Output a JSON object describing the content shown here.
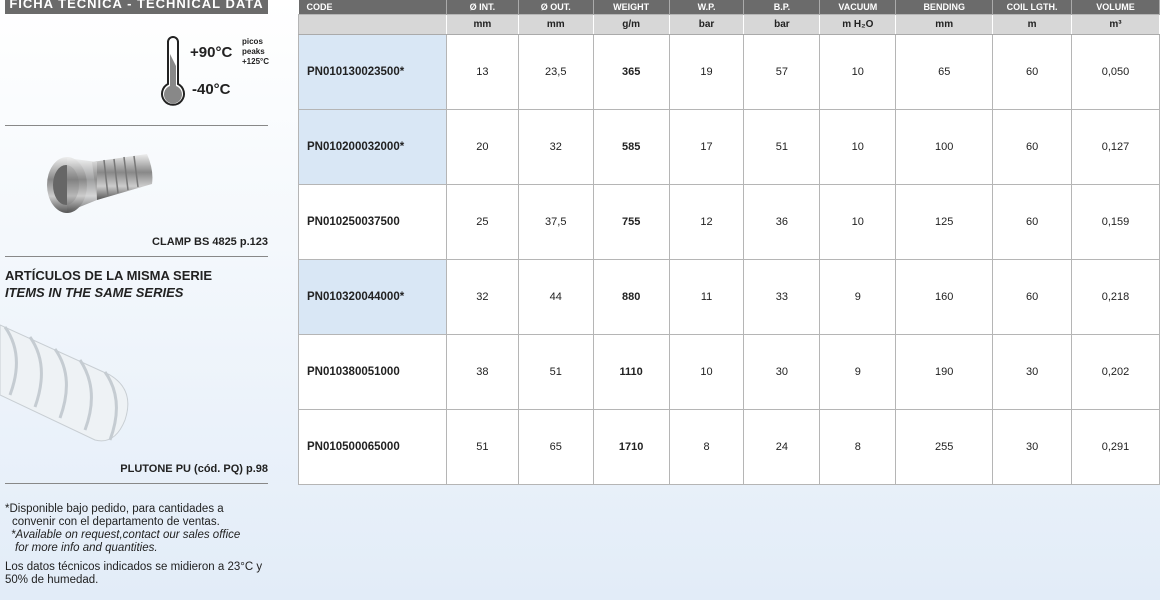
{
  "sidebar": {
    "title": "FICHA TÉCNICA - TECHNICAL DATA",
    "temp_max": "+90°C",
    "temp_min": "-40°C",
    "peaks": [
      "picos",
      "peaks",
      "+125°C"
    ],
    "accessory_caption": "CLAMP BS 4825 p.123",
    "series_es": "ARTÍCULOS DE LA MISMA SERIE",
    "series_en": "ITEMS IN THE SAME SERIES",
    "series_item_caption": "PLUTONE PU (cód. PQ) p.98",
    "note_es_1": "*Disponible bajo pedido, para cantidades a",
    "note_es_2": "convenir con el departamento de ventas.",
    "note_en_1": "*Available on request,contact our sales office",
    "note_en_2": "for more info and quantities.",
    "note_data": "Los datos técnicos indicados se midieron a 23°C y 50% de humedad.",
    "icons": [
      "thermometer-icon"
    ]
  },
  "table": {
    "headers": [
      "CODE",
      "Ø INT.",
      "Ø OUT.",
      "WEIGHT",
      "W.P.",
      "B.P.",
      "VACUUM",
      "BENDING",
      "COIL LGTH.",
      "VOLUME"
    ],
    "units": [
      "",
      "mm",
      "mm",
      "g/m",
      "bar",
      "bar",
      "m H₂O",
      "mm",
      "m",
      "m³"
    ],
    "rows": [
      {
        "code": "PN010130023500*",
        "highlight": true,
        "values": [
          "13",
          "23,5",
          "365",
          "19",
          "57",
          "10",
          "65",
          "60",
          "0,050"
        ]
      },
      {
        "code": "PN010200032000*",
        "highlight": true,
        "values": [
          "20",
          "32",
          "585",
          "17",
          "51",
          "10",
          "100",
          "60",
          "0,127"
        ]
      },
      {
        "code": "PN010250037500",
        "highlight": false,
        "values": [
          "25",
          "37,5",
          "755",
          "12",
          "36",
          "10",
          "125",
          "60",
          "0,159"
        ]
      },
      {
        "code": "PN010320044000*",
        "highlight": true,
        "values": [
          "32",
          "44",
          "880",
          "11",
          "33",
          "9",
          "160",
          "60",
          "0,218"
        ]
      },
      {
        "code": "PN010380051000",
        "highlight": false,
        "values": [
          "38",
          "51",
          "1110",
          "10",
          "30",
          "9",
          "190",
          "30",
          "0,202"
        ]
      },
      {
        "code": "PN010500065000",
        "highlight": false,
        "values": [
          "51",
          "65",
          "1710",
          "8",
          "24",
          "8",
          "255",
          "30",
          "0,291"
        ]
      }
    ],
    "colors": {
      "header_bg": "#6b6b6b",
      "unit_bg": "#d7d7d7",
      "highlight_bg": "#d9e7f5"
    }
  }
}
